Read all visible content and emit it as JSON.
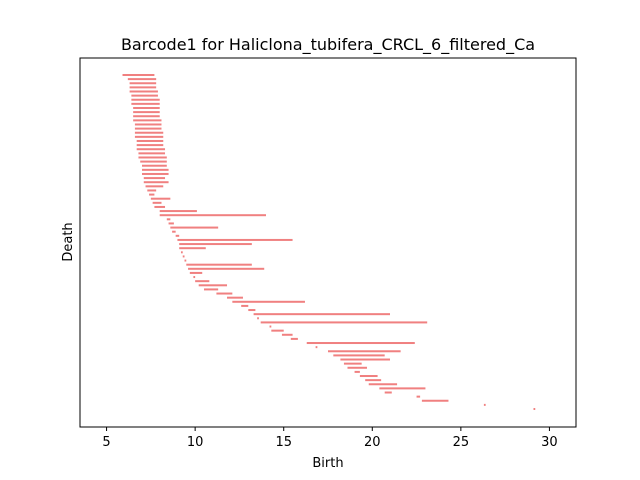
{
  "chart_data": {
    "type": "bar",
    "subtype": "persistence-barcode",
    "title": "Barcode1 for Haliclona_tubifera_CRCL_6_filtered_Ca",
    "xlabel": "Birth",
    "ylabel": "Death",
    "xlim": [
      3.5,
      31.5
    ],
    "x_ticks": [
      5,
      10,
      15,
      20,
      25,
      30
    ],
    "y_ticks": [],
    "grid": false,
    "legend": "none",
    "bar_color": "#f08080",
    "intervals": [
      [
        5.9,
        7.7
      ],
      [
        6.2,
        7.8
      ],
      [
        6.3,
        7.8
      ],
      [
        6.3,
        7.8
      ],
      [
        6.3,
        7.9
      ],
      [
        6.4,
        7.9
      ],
      [
        6.4,
        8.0
      ],
      [
        6.4,
        8.0
      ],
      [
        6.5,
        8.0
      ],
      [
        6.5,
        8.0
      ],
      [
        6.5,
        8.0
      ],
      [
        6.5,
        8.1
      ],
      [
        6.6,
        8.1
      ],
      [
        6.6,
        8.1
      ],
      [
        6.6,
        8.2
      ],
      [
        6.6,
        8.2
      ],
      [
        6.7,
        8.2
      ],
      [
        6.7,
        8.2
      ],
      [
        6.7,
        8.3
      ],
      [
        6.8,
        8.3
      ],
      [
        6.8,
        8.4
      ],
      [
        6.9,
        8.4
      ],
      [
        7.0,
        8.4
      ],
      [
        7.0,
        8.5
      ],
      [
        7.0,
        8.5
      ],
      [
        7.1,
        8.3
      ],
      [
        7.1,
        8.5
      ],
      [
        7.2,
        8.2
      ],
      [
        7.3,
        7.8
      ],
      [
        7.4,
        7.7
      ],
      [
        7.5,
        8.6
      ],
      [
        7.6,
        8.1
      ],
      [
        7.7,
        8.3
      ],
      [
        8.0,
        10.1
      ],
      [
        8.0,
        14.0
      ],
      [
        8.4,
        8.6
      ],
      [
        8.5,
        8.8
      ],
      [
        8.6,
        11.3
      ],
      [
        8.7,
        8.9
      ],
      [
        8.9,
        9.1
      ],
      [
        9.0,
        15.5
      ],
      [
        9.1,
        13.2
      ],
      [
        9.1,
        10.6
      ],
      [
        9.2,
        9.3
      ],
      [
        9.3,
        9.4
      ],
      [
        9.4,
        9.5
      ],
      [
        9.5,
        13.2
      ],
      [
        9.6,
        13.9
      ],
      [
        9.7,
        10.4
      ],
      [
        9.9,
        10.0
      ],
      [
        10.0,
        10.8
      ],
      [
        10.2,
        11.8
      ],
      [
        10.5,
        11.3
      ],
      [
        11.2,
        12.1
      ],
      [
        11.8,
        12.7
      ],
      [
        12.1,
        16.2
      ],
      [
        12.6,
        13.0
      ],
      [
        13.0,
        13.4
      ],
      [
        13.3,
        21.0
      ],
      [
        13.5,
        13.6
      ],
      [
        13.7,
        23.1
      ],
      [
        14.2,
        14.3
      ],
      [
        14.3,
        15.0
      ],
      [
        14.9,
        15.5
      ],
      [
        15.4,
        15.8
      ],
      [
        16.3,
        22.4
      ],
      [
        16.8,
        16.9
      ],
      [
        17.5,
        21.6
      ],
      [
        17.8,
        20.7
      ],
      [
        18.2,
        21.0
      ],
      [
        18.4,
        19.4
      ],
      [
        18.6,
        19.7
      ],
      [
        19.0,
        19.3
      ],
      [
        19.3,
        20.3
      ],
      [
        19.6,
        20.5
      ],
      [
        19.8,
        21.4
      ],
      [
        20.4,
        23.0
      ],
      [
        20.7,
        21.1
      ],
      [
        22.5,
        22.7
      ],
      [
        22.8,
        24.3
      ],
      [
        26.3,
        26.4
      ],
      [
        29.1,
        29.2
      ]
    ]
  }
}
